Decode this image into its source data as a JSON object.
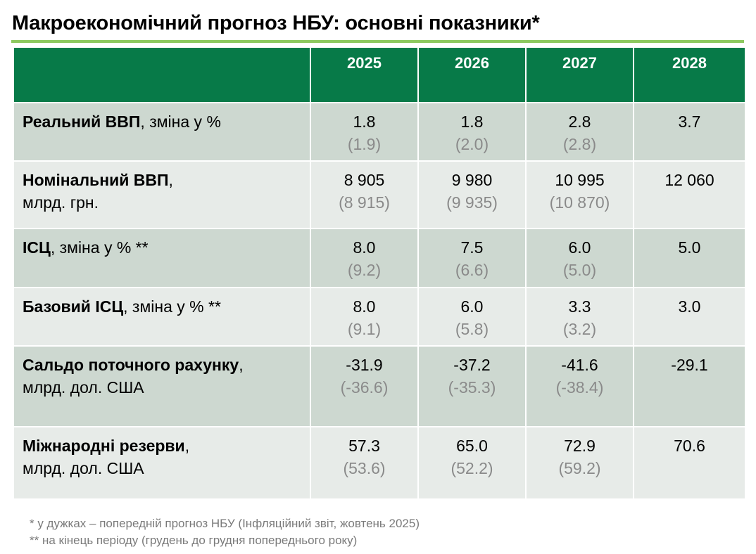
{
  "title": "Макроекономічний прогноз НБУ: основні показники*",
  "colors": {
    "header_bg": "#077a48",
    "title_rule": "#8dc85f",
    "row_dark": "#cdd8d0",
    "row_light": "#e7ebe8",
    "previous_value_text": "#8a8a8a"
  },
  "table": {
    "years": [
      "2025",
      "2026",
      "2027",
      "2028"
    ],
    "rows": [
      {
        "label_bold": "Реальний ВВП",
        "label_rest": ", зміна у %",
        "label_line2": "",
        "values": [
          {
            "cur": "1.8",
            "prev": "(1.9)"
          },
          {
            "cur": "1.8",
            "prev": "(2.0)"
          },
          {
            "cur": "2.8",
            "prev": "(2.8)"
          },
          {
            "cur": "3.7",
            "prev": ""
          }
        ]
      },
      {
        "label_bold": "Номінальний ВВП",
        "label_rest": ",",
        "label_line2": "млрд. грн.",
        "values": [
          {
            "cur": "8 905",
            "prev": "(8 915)"
          },
          {
            "cur": "9 980",
            "prev": "(9 935)"
          },
          {
            "cur": "10 995",
            "prev": "(10 870)"
          },
          {
            "cur": "12 060",
            "prev": ""
          }
        ]
      },
      {
        "label_bold": "ІСЦ",
        "label_rest": ", зміна у % **",
        "label_line2": "",
        "values": [
          {
            "cur": "8.0",
            "prev": "(9.2)"
          },
          {
            "cur": "7.5",
            "prev": "(6.6)"
          },
          {
            "cur": "6.0",
            "prev": "(5.0)"
          },
          {
            "cur": "5.0",
            "prev": ""
          }
        ]
      },
      {
        "label_bold": "Базовий ІСЦ",
        "label_rest": ", зміна у % **",
        "label_line2": "",
        "values": [
          {
            "cur": "8.0",
            "prev": "(9.1)"
          },
          {
            "cur": "6.0",
            "prev": "(5.8)"
          },
          {
            "cur": "3.3",
            "prev": "(3.2)"
          },
          {
            "cur": "3.0",
            "prev": ""
          }
        ]
      },
      {
        "label_bold": "Сальдо поточного рахунку",
        "label_rest": ",",
        "label_line2": "млрд. дол. США",
        "values": [
          {
            "cur": "-31.9",
            "prev": "(-36.6)"
          },
          {
            "cur": "-37.2",
            "prev": "(-35.3)"
          },
          {
            "cur": "-41.6",
            "prev": "(-38.4)"
          },
          {
            "cur": "-29.1",
            "prev": ""
          }
        ]
      },
      {
        "label_bold": "Міжнародні резерви",
        "label_rest": ",",
        "label_line2": "млрд. дол. США",
        "values": [
          {
            "cur": "57.3",
            "prev": "(53.6)"
          },
          {
            "cur": "65.0",
            "prev": "(52.2)"
          },
          {
            "cur": "72.9",
            "prev": "(59.2)"
          },
          {
            "cur": "70.6",
            "prev": ""
          }
        ]
      }
    ]
  },
  "footnotes": [
    "* у дужках – попередній прогноз НБУ (Інфляційний звіт, жовтень 2025)",
    "** на кінець періоду (грудень до грудня попереднього року)"
  ]
}
